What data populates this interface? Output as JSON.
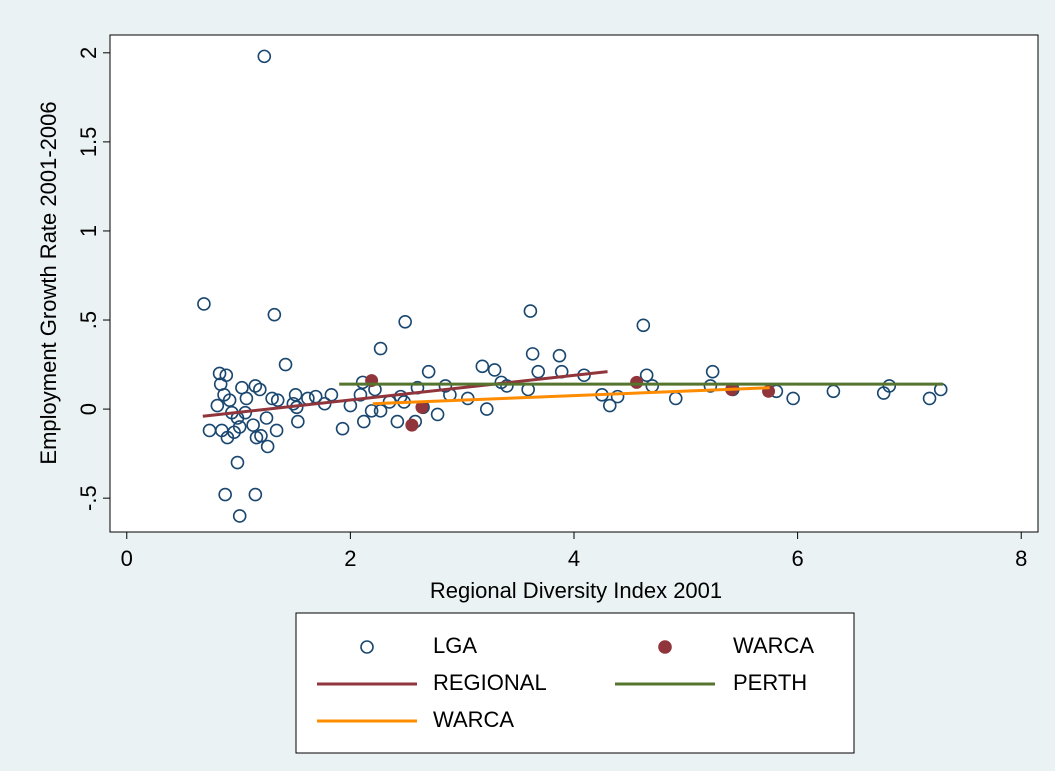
{
  "chart_data": {
    "type": "scatter",
    "x_label": "Regional Diversity Index 2001",
    "y_label": "Employment Growth Rate 2001-2006",
    "xlim": [
      -0.15,
      8.15
    ],
    "ylim": [
      -0.69,
      2.1
    ],
    "xticks": [
      0,
      2,
      4,
      6,
      8
    ],
    "yticks": [
      {
        "value": -0.5,
        "label": "-.5"
      },
      0,
      {
        "value": 0.5,
        "label": ".5"
      },
      1,
      1.5,
      2
    ],
    "grid": false,
    "legend": "bottom",
    "series": [
      {
        "name": "LGA",
        "type": "scatter",
        "marker": "hollow",
        "color": "#1a476f",
        "x": [
          0.69,
          1.23,
          1.32,
          1.42,
          0.83,
          0.89,
          0.74,
          0.81,
          0.84,
          0.87,
          0.92,
          0.88,
          1.15,
          1.01,
          0.99,
          0.85,
          0.9,
          0.96,
          1.01,
          1.06,
          1.03,
          1.07,
          1.15,
          1.19,
          1.2,
          1.26,
          1.25,
          1.3,
          1.35,
          1.34,
          1.13,
          1.16,
          0.94,
          0.99,
          1.51,
          1.52,
          1.53,
          1.49,
          1.62,
          1.69,
          1.77,
          1.83,
          1.93,
          2.0,
          2.09,
          2.11,
          2.12,
          2.19,
          2.22,
          2.27,
          2.27,
          2.35,
          2.42,
          2.45,
          2.48,
          2.49,
          2.58,
          2.6,
          2.65,
          2.7,
          2.78,
          2.85,
          2.89,
          3.05,
          3.18,
          3.22,
          3.29,
          3.35,
          3.4,
          3.59,
          3.61,
          3.63,
          3.68,
          3.87,
          3.89,
          4.09,
          4.25,
          4.32,
          4.39,
          4.62,
          4.65,
          4.7,
          4.91,
          5.24,
          5.22,
          5.42,
          5.81,
          5.96,
          6.32,
          6.77,
          6.82,
          7.18,
          7.28
        ],
        "values": [
          0.59,
          1.98,
          0.53,
          0.25,
          0.2,
          0.19,
          -0.12,
          0.02,
          0.14,
          0.08,
          0.05,
          -0.48,
          -0.48,
          -0.6,
          -0.3,
          -0.12,
          -0.16,
          -0.13,
          -0.1,
          -0.02,
          0.12,
          0.06,
          0.13,
          0.11,
          -0.15,
          -0.21,
          -0.05,
          0.06,
          0.05,
          -0.12,
          -0.09,
          -0.16,
          -0.02,
          -0.05,
          0.08,
          0.01,
          -0.07,
          0.03,
          0.06,
          0.07,
          0.03,
          0.08,
          -0.11,
          0.02,
          0.08,
          0.15,
          -0.07,
          -0.01,
          0.11,
          0.34,
          -0.01,
          0.04,
          -0.07,
          0.07,
          0.04,
          0.49,
          -0.07,
          0.12,
          0.01,
          0.21,
          -0.03,
          0.13,
          0.08,
          0.06,
          0.24,
          0.0,
          0.22,
          0.15,
          0.13,
          0.11,
          0.55,
          0.31,
          0.21,
          0.3,
          0.21,
          0.19,
          0.08,
          0.02,
          0.07,
          0.47,
          0.19,
          0.13,
          0.06,
          0.21,
          0.13,
          0.11,
          0.1,
          0.06,
          0.1,
          0.09,
          0.13,
          0.06,
          0.11
        ]
      },
      {
        "name": "WARCA",
        "type": "scatter",
        "marker": "filled",
        "color": "#90353b",
        "x": [
          2.19,
          2.55,
          2.64,
          4.56,
          5.41,
          5.74
        ],
        "values": [
          0.16,
          -0.09,
          0.01,
          0.15,
          0.11,
          0.1
        ]
      },
      {
        "name": "REGIONAL",
        "type": "line",
        "color": "#90353b",
        "x": [
          0.68,
          4.3
        ],
        "values": [
          -0.04,
          0.21
        ]
      },
      {
        "name": "PERTH",
        "type": "line",
        "color": "#55752f",
        "x": [
          1.9,
          7.3
        ],
        "values": [
          0.14,
          0.14
        ]
      },
      {
        "name": "WARCA",
        "type": "line",
        "color": "#ff8c00",
        "x": [
          2.2,
          5.75
        ],
        "values": [
          0.03,
          0.12
        ]
      }
    ]
  }
}
